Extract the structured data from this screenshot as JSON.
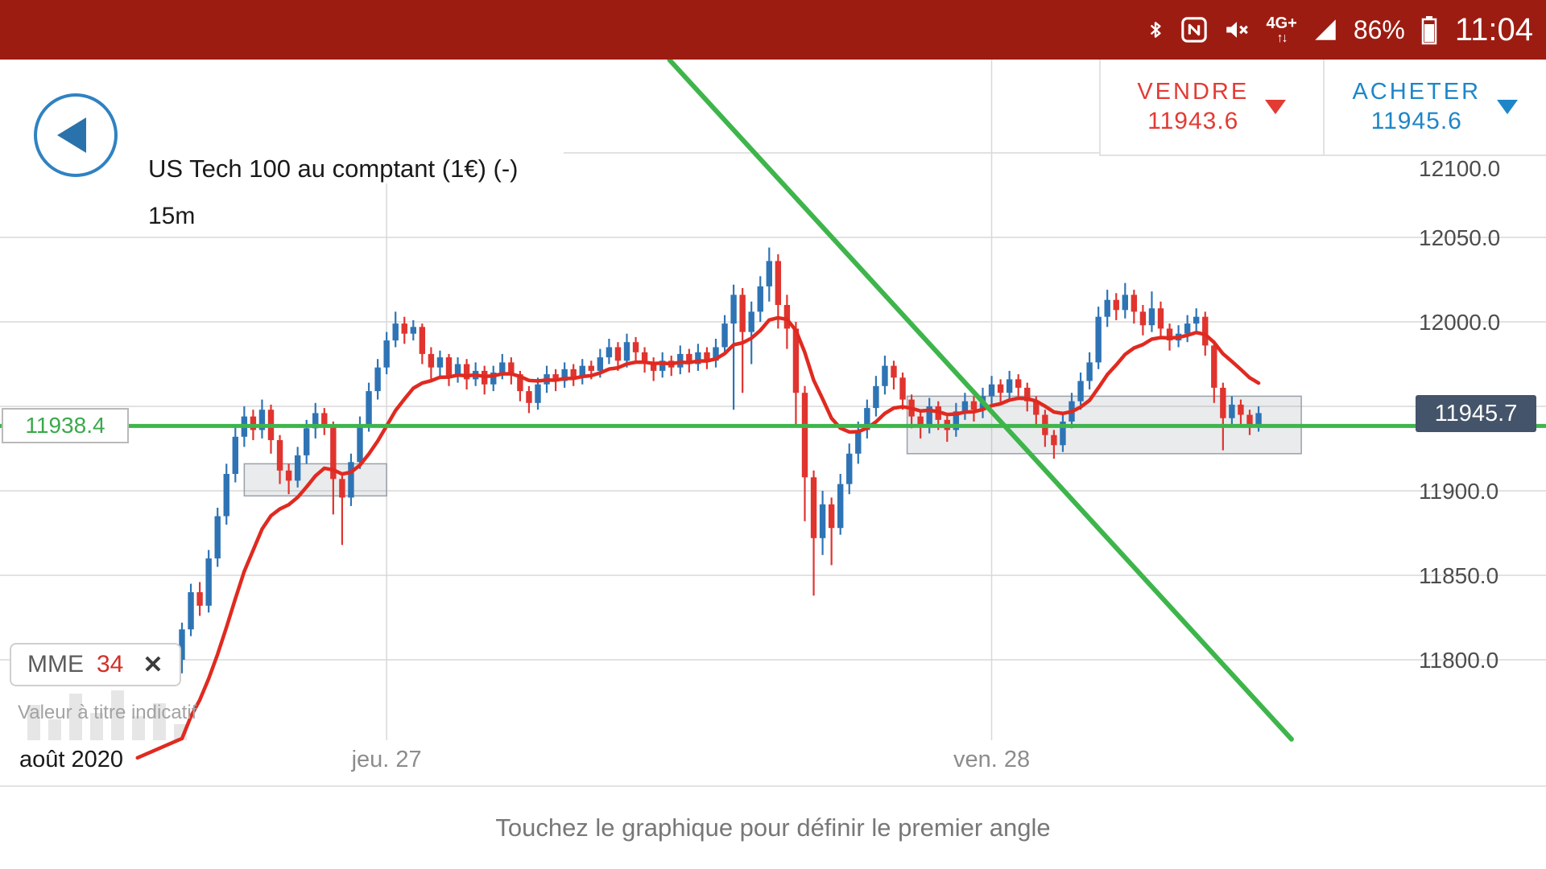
{
  "status_bar": {
    "time": "11:04",
    "battery": "86%",
    "network_label": "4G+",
    "network_arrows": "↑↓"
  },
  "header": {
    "title": "US Tech 100 au comptant (1€) (-)",
    "timeframe": "15m",
    "sell_label": "VENDRE",
    "sell_price": "11943.6",
    "buy_label": "ACHETER",
    "buy_price": "11945.6"
  },
  "indicator_chip": {
    "name": "MME",
    "period": "34",
    "close_glyph": "✕"
  },
  "disclaimer": "Valeur à titre indicatif",
  "footer_hint": "Touchez le graphique pour définir le premier angle",
  "price_axis": {
    "labels": [
      "12100.0",
      "12050.0",
      "12000.0",
      "11900.0",
      "11850.0",
      "11800.0"
    ],
    "current_price_tag": "11945.7"
  },
  "time_axis": [
    {
      "label": "août 2020",
      "index": null
    },
    {
      "label": "jeu. 27",
      "index": 23
    },
    {
      "label": "ven. 28",
      "index": 91
    }
  ],
  "level_label": "11938.4",
  "colors": {
    "status_bar_bg": "#9d1c12",
    "up": "#2e74b5",
    "down": "#e0342f",
    "ema": "#e02a20",
    "green": "#3eb54b",
    "grid": "#d8d8d8",
    "zone_fill": "rgba(160,165,175,0.22)",
    "zone_border": "#9aa0a8",
    "price_tag_bg": "#44546a"
  },
  "decoration_bars": [
    44,
    26,
    58,
    34,
    62,
    30,
    46,
    20
  ],
  "chart_data": {
    "type": "candlestick",
    "title": "US Tech 100 au comptant (1€)",
    "interval": "15m",
    "ylim": [
      11740,
      12160
    ],
    "gridline_prices": [
      12100,
      12050,
      12000,
      11950,
      11900,
      11850,
      11800
    ],
    "current_price": 11945.7,
    "support_line_price": 11938.4,
    "indicator": {
      "type": "MME",
      "period": 34,
      "seed": 11742,
      "smoothing": 0.15
    },
    "zones": [
      {
        "start_index": 7,
        "end_index": 23,
        "top_price": 11916,
        "bottom_price": 11897
      },
      {
        "start_index": 81.5,
        "end_index": 125.8,
        "top_price": 11956,
        "bottom_price": 11922
      }
    ],
    "trendline": {
      "start_index": 54.8,
      "start_price": 12155,
      "end_index": 124.7,
      "end_price": 11753
    },
    "candles_ohlc": [
      [
        11800,
        11822,
        11792,
        11818
      ],
      [
        11818,
        11845,
        11814,
        11840
      ],
      [
        11840,
        11846,
        11826,
        11832
      ],
      [
        11832,
        11865,
        11828,
        11860
      ],
      [
        11860,
        11890,
        11855,
        11885
      ],
      [
        11885,
        11916,
        11880,
        11910
      ],
      [
        11910,
        11938,
        11905,
        11932
      ],
      [
        11932,
        11950,
        11926,
        11944
      ],
      [
        11944,
        11948,
        11930,
        11936
      ],
      [
        11936,
        11954,
        11931,
        11948
      ],
      [
        11948,
        11951,
        11922,
        11930
      ],
      [
        11930,
        11933,
        11904,
        11912
      ],
      [
        11912,
        11916,
        11898,
        11906
      ],
      [
        11906,
        11926,
        11902,
        11921
      ],
      [
        11921,
        11942,
        11916,
        11937
      ],
      [
        11937,
        11952,
        11931,
        11946
      ],
      [
        11946,
        11949,
        11933,
        11939
      ],
      [
        11939,
        11941,
        11886,
        11907
      ],
      [
        11907,
        11910,
        11868,
        11896
      ],
      [
        11896,
        11922,
        11891,
        11917
      ],
      [
        11917,
        11944,
        11913,
        11939
      ],
      [
        11939,
        11964,
        11935,
        11959
      ],
      [
        11959,
        11978,
        11954,
        11973
      ],
      [
        11973,
        11994,
        11969,
        11989
      ],
      [
        11989,
        12006,
        11985,
        11999
      ],
      [
        11999,
        12003,
        11987,
        11993
      ],
      [
        11993,
        12001,
        11989,
        11997
      ],
      [
        11997,
        11999,
        11975,
        11981
      ],
      [
        11981,
        11985,
        11965,
        11973
      ],
      [
        11973,
        11983,
        11968,
        11979
      ],
      [
        11979,
        11981,
        11962,
        11968
      ],
      [
        11968,
        11979,
        11964,
        11975
      ],
      [
        11975,
        11978,
        11960,
        11966
      ],
      [
        11966,
        11976,
        11962,
        11971
      ],
      [
        11971,
        11974,
        11957,
        11963
      ],
      [
        11963,
        11974,
        11959,
        11970
      ],
      [
        11970,
        11981,
        11966,
        11976
      ],
      [
        11976,
        11979,
        11963,
        11969
      ],
      [
        11969,
        11971,
        11953,
        11959
      ],
      [
        11959,
        11962,
        11946,
        11952
      ],
      [
        11952,
        11967,
        11948,
        11963
      ],
      [
        11963,
        11974,
        11958,
        11969
      ],
      [
        11969,
        11972,
        11959,
        11965
      ],
      [
        11965,
        11976,
        11961,
        11972
      ],
      [
        11972,
        11975,
        11962,
        11967
      ],
      [
        11967,
        11978,
        11963,
        11974
      ],
      [
        11974,
        11977,
        11966,
        11971
      ],
      [
        11971,
        11984,
        11967,
        11979
      ],
      [
        11979,
        11990,
        11975,
        11985
      ],
      [
        11985,
        11988,
        11971,
        11977
      ],
      [
        11977,
        11993,
        11973,
        11988
      ],
      [
        11988,
        11991,
        11976,
        11982
      ],
      [
        11982,
        11985,
        11970,
        11976
      ],
      [
        11976,
        11979,
        11965,
        11971
      ],
      [
        11971,
        11982,
        11967,
        11977
      ],
      [
        11977,
        11980,
        11968,
        11973
      ],
      [
        11973,
        11986,
        11969,
        11981
      ],
      [
        11981,
        11984,
        11970,
        11975
      ],
      [
        11975,
        11987,
        11971,
        11982
      ],
      [
        11982,
        11985,
        11972,
        11977
      ],
      [
        11977,
        11990,
        11973,
        11985
      ],
      [
        11985,
        12004,
        11981,
        11999
      ],
      [
        11999,
        12022,
        11948,
        12016
      ],
      [
        12016,
        12020,
        11958,
        11994
      ],
      [
        11994,
        12012,
        11975,
        12006
      ],
      [
        12006,
        12027,
        12000,
        12021
      ],
      [
        12021,
        12044,
        12012,
        12036
      ],
      [
        12036,
        12040,
        11996,
        12010
      ],
      [
        12010,
        12016,
        11984,
        11996
      ],
      [
        11996,
        12000,
        11938,
        11958
      ],
      [
        11958,
        11962,
        11882,
        11908
      ],
      [
        11908,
        11912,
        11838,
        11872
      ],
      [
        11872,
        11900,
        11862,
        11892
      ],
      [
        11892,
        11896,
        11856,
        11878
      ],
      [
        11878,
        11910,
        11874,
        11904
      ],
      [
        11904,
        11928,
        11898,
        11922
      ],
      [
        11922,
        11941,
        11916,
        11936
      ],
      [
        11936,
        11954,
        11931,
        11949
      ],
      [
        11949,
        11968,
        11944,
        11962
      ],
      [
        11962,
        11980,
        11957,
        11974
      ],
      [
        11974,
        11977,
        11960,
        11967
      ],
      [
        11967,
        11970,
        11948,
        11954
      ],
      [
        11954,
        11957,
        11937,
        11944
      ],
      [
        11944,
        11948,
        11931,
        11938
      ],
      [
        11938,
        11955,
        11934,
        11950
      ],
      [
        11950,
        11953,
        11936,
        11942
      ],
      [
        11942,
        11945,
        11929,
        11936
      ],
      [
        11936,
        11952,
        11932,
        11947
      ],
      [
        11947,
        11958,
        11942,
        11953
      ],
      [
        11953,
        11956,
        11941,
        11948
      ],
      [
        11948,
        11961,
        11943,
        11956
      ],
      [
        11956,
        11968,
        11951,
        11963
      ],
      [
        11963,
        11966,
        11952,
        11958
      ],
      [
        11958,
        11971,
        11953,
        11966
      ],
      [
        11966,
        11969,
        11955,
        11961
      ],
      [
        11961,
        11964,
        11947,
        11953
      ],
      [
        11953,
        11956,
        11938,
        11945
      ],
      [
        11945,
        11948,
        11926,
        11933
      ],
      [
        11933,
        11936,
        11919,
        11927
      ],
      [
        11927,
        11946,
        11923,
        11941
      ],
      [
        11941,
        11958,
        11937,
        11953
      ],
      [
        11953,
        11970,
        11948,
        11965
      ],
      [
        11965,
        11982,
        11960,
        11976
      ],
      [
        11976,
        12009,
        11972,
        12003
      ],
      [
        12003,
        12019,
        11997,
        12013
      ],
      [
        12013,
        12017,
        12001,
        12007
      ],
      [
        12007,
        12023,
        12002,
        12016
      ],
      [
        12016,
        12019,
        11999,
        12006
      ],
      [
        12006,
        12010,
        11992,
        11998
      ],
      [
        11998,
        12018,
        11994,
        12008
      ],
      [
        12008,
        12012,
        11990,
        11996
      ],
      [
        11996,
        11999,
        11983,
        11989
      ],
      [
        11989,
        11998,
        11985,
        11993
      ],
      [
        11993,
        12004,
        11988,
        11999
      ],
      [
        11999,
        12008,
        11994,
        12003
      ],
      [
        12003,
        12006,
        11980,
        11986
      ],
      [
        11986,
        11989,
        11952,
        11961
      ],
      [
        11961,
        11964,
        11924,
        11943
      ],
      [
        11943,
        11956,
        11938,
        11951
      ],
      [
        11951,
        11954,
        11939,
        11945
      ],
      [
        11945,
        11948,
        11933,
        11939
      ],
      [
        11939,
        11950,
        11935,
        11946
      ]
    ]
  }
}
